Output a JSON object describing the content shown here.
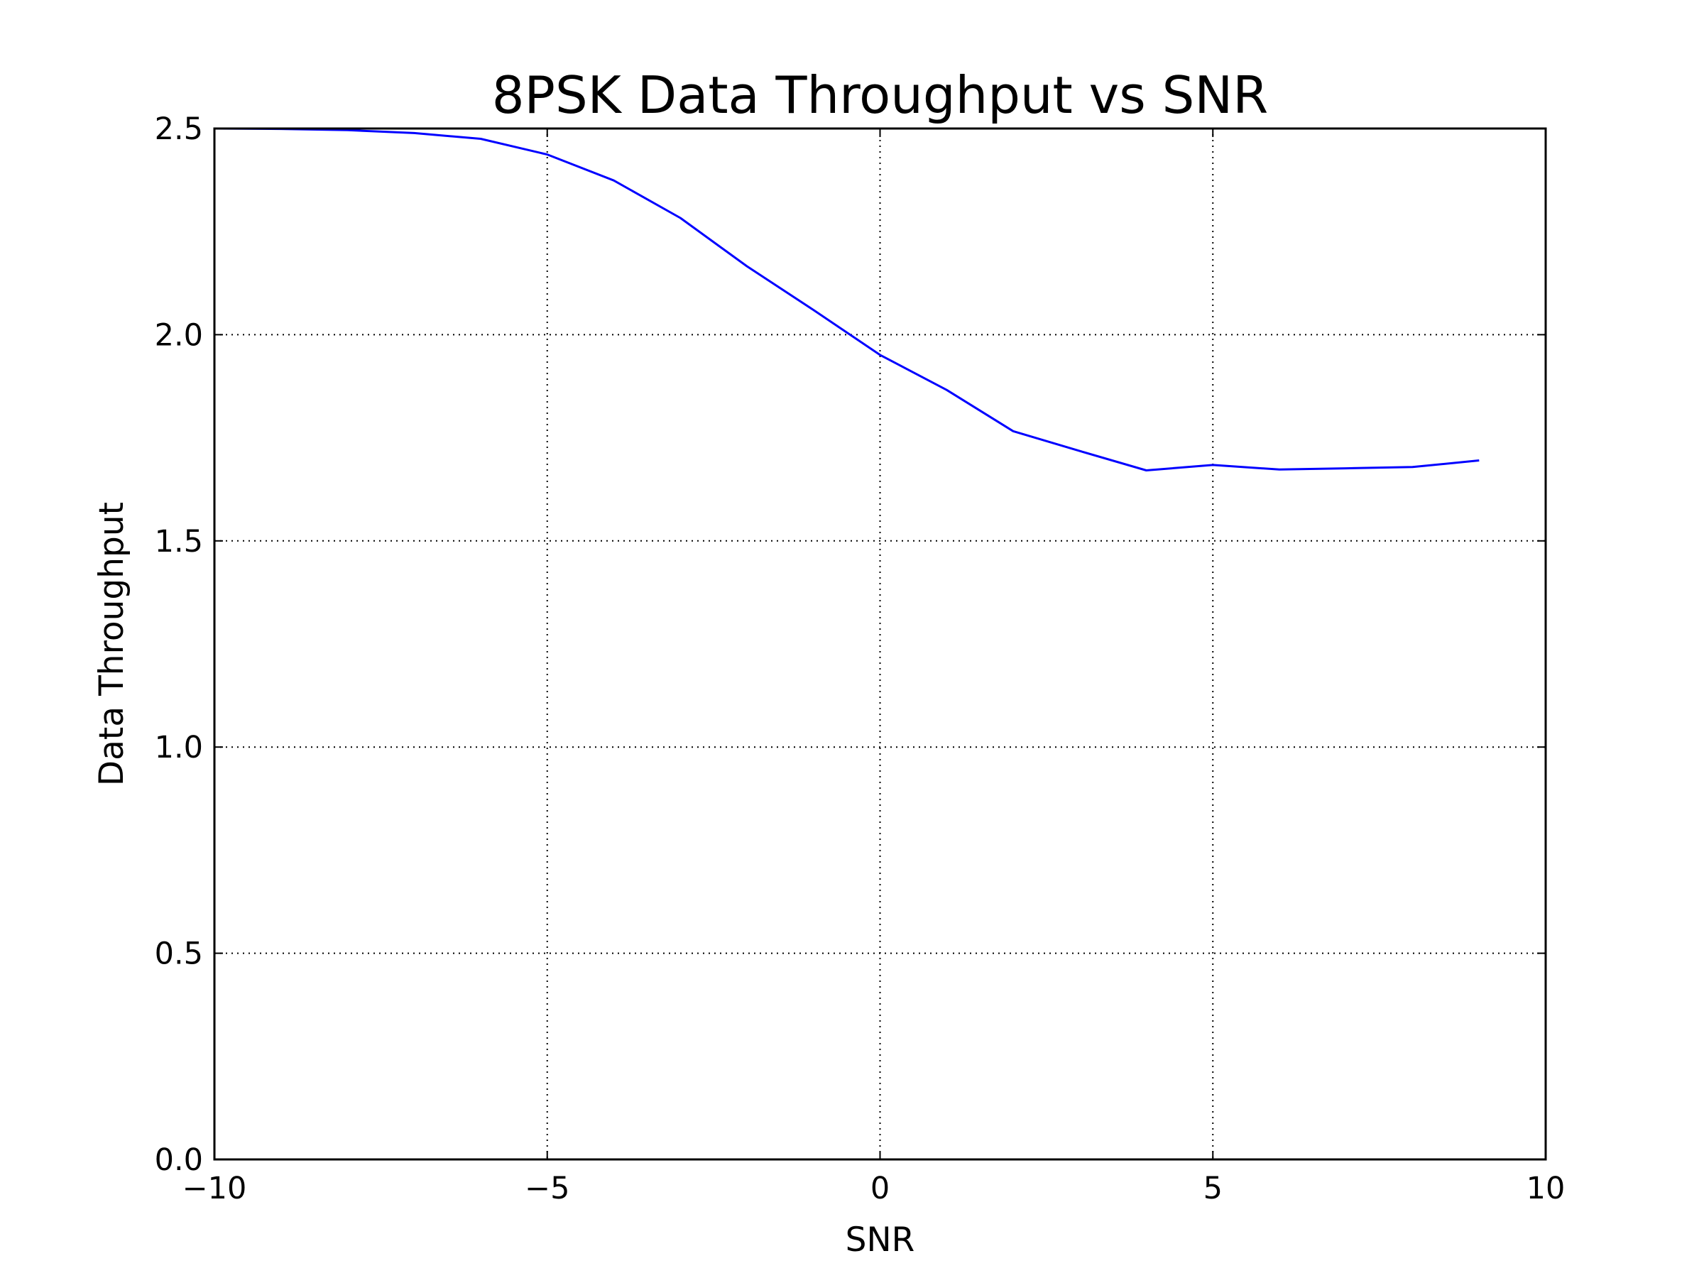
{
  "chart_data": {
    "type": "line",
    "title": "8PSK Data Throughput vs SNR",
    "xlabel": "SNR",
    "ylabel": "Data Throughput",
    "xlim": [
      -10,
      10
    ],
    "ylim": [
      0.0,
      2.5
    ],
    "xticks": [
      -10,
      -5,
      0,
      5,
      10
    ],
    "xtick_labels": [
      "−10",
      "−5",
      "0",
      "5",
      "10"
    ],
    "yticks": [
      0.0,
      0.5,
      1.0,
      1.5,
      2.0,
      2.5
    ],
    "ytick_labels": [
      "0.0",
      "0.5",
      "1.0",
      "1.5",
      "2.0",
      "2.5"
    ],
    "grid": true,
    "grid_style": "dotted",
    "series": [
      {
        "color": "#0000ff",
        "x": [
          -10,
          -9,
          -8,
          -7,
          -6,
          -5,
          -4,
          -3,
          -2,
          -1,
          0,
          1,
          2,
          3,
          4,
          5,
          6,
          7,
          8,
          9
        ],
        "y": [
          2.5,
          2.499,
          2.496,
          2.489,
          2.475,
          2.437,
          2.374,
          2.283,
          2.166,
          2.06,
          1.951,
          1.866,
          1.766,
          1.718,
          1.671,
          1.684,
          1.673,
          1.676,
          1.679,
          1.695
        ]
      }
    ]
  }
}
